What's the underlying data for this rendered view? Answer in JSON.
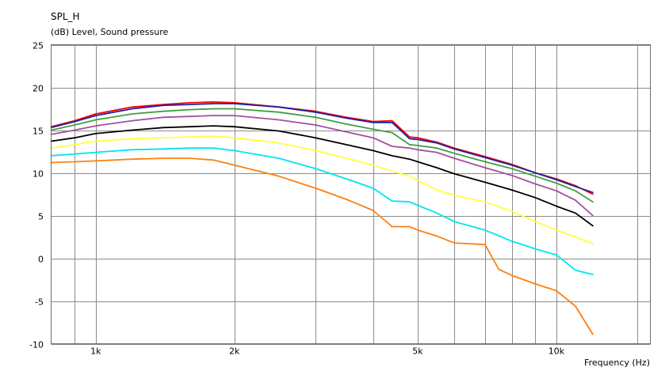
{
  "chart_data": {
    "type": "line",
    "title": "SPL_H",
    "ylabel": "(dB)  Level, Sound pressure",
    "xlabel": "Frequency  (Hz)",
    "x_scale": "log",
    "xlim": [
      800,
      16000
    ],
    "ylim": [
      -10,
      25
    ],
    "yticks": [
      25,
      20,
      15,
      10,
      5,
      0,
      -5,
      -10
    ],
    "ytick_labels": [
      "25",
      "20",
      "15",
      "10",
      "5",
      "0",
      "-5",
      "-10"
    ],
    "xticks": [
      1000,
      2000,
      5000,
      10000
    ],
    "xtick_labels": [
      "1k",
      "2k",
      "5k",
      "10k"
    ],
    "x_minor_grid": [
      900,
      3000,
      4000,
      6000,
      7000,
      8000,
      9000,
      15000
    ],
    "grid": true,
    "series": [
      {
        "color": "#ff0000",
        "points": [
          [
            800,
            15.4
          ],
          [
            900,
            16.1
          ],
          [
            1000,
            16.9
          ],
          [
            1200,
            17.7
          ],
          [
            1400,
            18.0
          ],
          [
            1600,
            18.2
          ],
          [
            1800,
            18.3
          ],
          [
            2000,
            18.2
          ],
          [
            2500,
            17.7
          ],
          [
            3000,
            17.2
          ],
          [
            3500,
            16.5
          ],
          [
            4000,
            16.0
          ],
          [
            4400,
            16.1
          ],
          [
            4800,
            14.2
          ],
          [
            5000,
            14.1
          ],
          [
            5500,
            13.6
          ],
          [
            6000,
            12.9
          ],
          [
            7000,
            11.9
          ],
          [
            8000,
            11.0
          ],
          [
            9000,
            10.0
          ],
          [
            10000,
            9.3
          ],
          [
            11000,
            8.5
          ],
          [
            12000,
            7.5
          ]
        ]
      },
      {
        "color": "#2020a0",
        "points": [
          [
            800,
            15.3
          ],
          [
            900,
            16.0
          ],
          [
            1000,
            16.7
          ],
          [
            1200,
            17.5
          ],
          [
            1400,
            17.9
          ],
          [
            1600,
            18.0
          ],
          [
            1800,
            18.1
          ],
          [
            2000,
            18.1
          ],
          [
            2500,
            17.7
          ],
          [
            3000,
            17.1
          ],
          [
            3500,
            16.4
          ],
          [
            4000,
            15.9
          ],
          [
            4400,
            15.9
          ],
          [
            4800,
            14.0
          ],
          [
            5000,
            13.9
          ],
          [
            5500,
            13.5
          ],
          [
            6000,
            12.8
          ],
          [
            7000,
            11.8
          ],
          [
            8000,
            10.9
          ],
          [
            9000,
            10.0
          ],
          [
            10000,
            9.2
          ],
          [
            11000,
            8.4
          ],
          [
            12000,
            7.7
          ]
        ]
      },
      {
        "color": "#3f9f3f",
        "points": [
          [
            800,
            15.0
          ],
          [
            900,
            15.6
          ],
          [
            1000,
            16.2
          ],
          [
            1200,
            16.9
          ],
          [
            1400,
            17.2
          ],
          [
            1600,
            17.4
          ],
          [
            1800,
            17.5
          ],
          [
            2000,
            17.5
          ],
          [
            2500,
            17.1
          ],
          [
            3000,
            16.5
          ],
          [
            3500,
            15.7
          ],
          [
            4000,
            15.1
          ],
          [
            4400,
            14.7
          ],
          [
            4800,
            13.3
          ],
          [
            5000,
            13.2
          ],
          [
            5500,
            12.9
          ],
          [
            6000,
            12.3
          ],
          [
            7000,
            11.3
          ],
          [
            8000,
            10.5
          ],
          [
            9000,
            9.6
          ],
          [
            10000,
            8.8
          ],
          [
            11000,
            7.9
          ],
          [
            12000,
            6.6
          ]
        ]
      },
      {
        "color": "#a050a0",
        "points": [
          [
            800,
            14.5
          ],
          [
            900,
            15.0
          ],
          [
            1000,
            15.5
          ],
          [
            1200,
            16.1
          ],
          [
            1400,
            16.5
          ],
          [
            1600,
            16.6
          ],
          [
            1800,
            16.7
          ],
          [
            2000,
            16.7
          ],
          [
            2500,
            16.2
          ],
          [
            3000,
            15.6
          ],
          [
            3500,
            14.8
          ],
          [
            4000,
            14.1
          ],
          [
            4400,
            13.1
          ],
          [
            4800,
            12.9
          ],
          [
            5000,
            12.7
          ],
          [
            5500,
            12.4
          ],
          [
            6000,
            11.7
          ],
          [
            7000,
            10.6
          ],
          [
            8000,
            9.7
          ],
          [
            9000,
            8.7
          ],
          [
            10000,
            7.9
          ],
          [
            11000,
            6.8
          ],
          [
            12000,
            5.0
          ]
        ]
      },
      {
        "color": "#000000",
        "points": [
          [
            800,
            13.7
          ],
          [
            900,
            14.1
          ],
          [
            1000,
            14.6
          ],
          [
            1200,
            15.0
          ],
          [
            1400,
            15.3
          ],
          [
            1600,
            15.4
          ],
          [
            1800,
            15.5
          ],
          [
            2000,
            15.4
          ],
          [
            2500,
            14.9
          ],
          [
            3000,
            14.1
          ],
          [
            3500,
            13.3
          ],
          [
            4000,
            12.6
          ],
          [
            4400,
            12.0
          ],
          [
            4800,
            11.6
          ],
          [
            5000,
            11.3
          ],
          [
            5500,
            10.6
          ],
          [
            6000,
            9.9
          ],
          [
            7000,
            8.9
          ],
          [
            8000,
            8.0
          ],
          [
            9000,
            7.1
          ],
          [
            10000,
            6.1
          ],
          [
            11000,
            5.3
          ],
          [
            12000,
            3.8
          ]
        ]
      },
      {
        "color": "#ffff40",
        "points": [
          [
            800,
            12.9
          ],
          [
            900,
            13.3
          ],
          [
            1000,
            13.7
          ],
          [
            1200,
            14.0
          ],
          [
            1400,
            14.1
          ],
          [
            1600,
            14.2
          ],
          [
            1800,
            14.3
          ],
          [
            2000,
            14.1
          ],
          [
            2500,
            13.5
          ],
          [
            3000,
            12.6
          ],
          [
            3500,
            11.7
          ],
          [
            4000,
            10.9
          ],
          [
            4400,
            10.2
          ],
          [
            4800,
            9.6
          ],
          [
            5000,
            9.1
          ],
          [
            5500,
            8.0
          ],
          [
            6000,
            7.4
          ],
          [
            7000,
            6.6
          ],
          [
            8000,
            5.5
          ],
          [
            9000,
            4.3
          ],
          [
            10000,
            3.3
          ],
          [
            11000,
            2.5
          ],
          [
            12000,
            1.7
          ]
        ]
      },
      {
        "color": "#00e5ee",
        "points": [
          [
            800,
            12.0
          ],
          [
            900,
            12.2
          ],
          [
            1000,
            12.4
          ],
          [
            1200,
            12.7
          ],
          [
            1400,
            12.8
          ],
          [
            1600,
            12.9
          ],
          [
            1800,
            12.9
          ],
          [
            2000,
            12.6
          ],
          [
            2500,
            11.7
          ],
          [
            3000,
            10.5
          ],
          [
            3500,
            9.3
          ],
          [
            4000,
            8.2
          ],
          [
            4400,
            6.7
          ],
          [
            4800,
            6.6
          ],
          [
            5000,
            6.2
          ],
          [
            5500,
            5.3
          ],
          [
            6000,
            4.3
          ],
          [
            7000,
            3.3
          ],
          [
            8000,
            2.0
          ],
          [
            9000,
            1.1
          ],
          [
            10000,
            0.4
          ],
          [
            11000,
            -1.4
          ],
          [
            12000,
            -1.9
          ]
        ]
      },
      {
        "color": "#ff7f10",
        "points": [
          [
            800,
            11.2
          ],
          [
            900,
            11.3
          ],
          [
            1000,
            11.4
          ],
          [
            1200,
            11.6
          ],
          [
            1400,
            11.7
          ],
          [
            1600,
            11.7
          ],
          [
            1800,
            11.5
          ],
          [
            2000,
            10.9
          ],
          [
            2500,
            9.6
          ],
          [
            3000,
            8.2
          ],
          [
            3500,
            6.9
          ],
          [
            4000,
            5.6
          ],
          [
            4400,
            3.7
          ],
          [
            4800,
            3.7
          ],
          [
            5000,
            3.3
          ],
          [
            5500,
            2.6
          ],
          [
            6000,
            1.8
          ],
          [
            7000,
            1.6
          ],
          [
            7500,
            -1.3
          ],
          [
            8000,
            -2.0
          ],
          [
            9000,
            -3.0
          ],
          [
            10000,
            -3.8
          ],
          [
            11000,
            -5.6
          ],
          [
            12000,
            -8.9
          ]
        ]
      }
    ]
  }
}
